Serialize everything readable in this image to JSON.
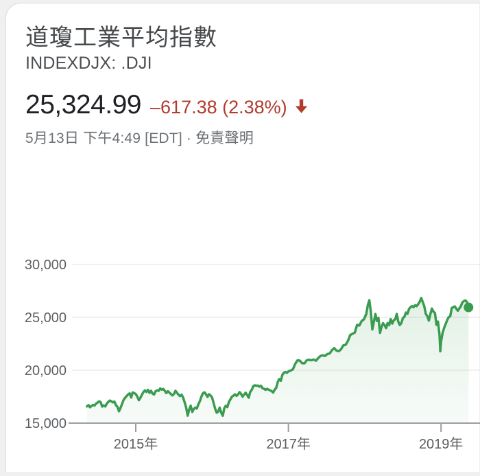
{
  "card": {
    "title": "道瓊工業平均指數",
    "ticker": "INDEXDJX: .DJI",
    "quote": {
      "price": "25,324.99",
      "change": "–617.38 (2.38%)",
      "direction": "down",
      "change_color": "#b23b2e"
    },
    "timestamp": "5月13日 下午4:49 [EDT] · ",
    "disclaimer": "免責聲明"
  },
  "chart_data": {
    "type": "area",
    "title": "Dow Jones Industrial Average 5-year price chart",
    "grid": true,
    "line_color": "#3a9c50",
    "dot_color": "#3a9c50",
    "axis_color": "#9b9da0",
    "grid_color": "#ececec",
    "label_color": "#5b5e61",
    "ylim": [
      15000,
      30000
    ],
    "xlim_years": [
      2014.3,
      2019.45
    ],
    "y_ticks": [
      {
        "label": "30,000",
        "value": 30000
      },
      {
        "label": "25,000",
        "value": 25000
      },
      {
        "label": "20,000",
        "value": 20000
      },
      {
        "label": "15,000",
        "value": 15000
      }
    ],
    "x_ticks": [
      {
        "label": "2015年",
        "year": 2015
      },
      {
        "label": "2017年",
        "year": 2017
      },
      {
        "label": "2019年",
        "year": 2019
      }
    ],
    "series": [
      {
        "name": "INDEXDJX: .DJI",
        "points": [
          [
            2014.36,
            16580
          ],
          [
            2014.38,
            16700
          ],
          [
            2014.4,
            16500
          ],
          [
            2014.42,
            16620
          ],
          [
            2014.44,
            16720
          ],
          [
            2014.46,
            16660
          ],
          [
            2014.48,
            16850
          ],
          [
            2014.5,
            16940
          ],
          [
            2014.52,
            17060
          ],
          [
            2014.54,
            16980
          ],
          [
            2014.56,
            16560
          ],
          [
            2014.58,
            16680
          ],
          [
            2014.6,
            16570
          ],
          [
            2014.62,
            16840
          ],
          [
            2014.64,
            17010
          ],
          [
            2014.66,
            17130
          ],
          [
            2014.68,
            17060
          ],
          [
            2014.7,
            16960
          ],
          [
            2014.72,
            17040
          ],
          [
            2014.74,
            16700
          ],
          [
            2014.76,
            16540
          ],
          [
            2014.78,
            16120
          ],
          [
            2014.8,
            16420
          ],
          [
            2014.82,
            16810
          ],
          [
            2014.84,
            17190
          ],
          [
            2014.86,
            17390
          ],
          [
            2014.88,
            17550
          ],
          [
            2014.9,
            17720
          ],
          [
            2014.92,
            17810
          ],
          [
            2014.94,
            17420
          ],
          [
            2014.96,
            17900
          ],
          [
            2014.98,
            17830
          ],
          [
            2015.0,
            17750
          ],
          [
            2015.02,
            17510
          ],
          [
            2015.04,
            17160
          ],
          [
            2015.06,
            17390
          ],
          [
            2015.08,
            17670
          ],
          [
            2015.1,
            17930
          ],
          [
            2015.12,
            18100
          ],
          [
            2015.14,
            17950
          ],
          [
            2015.16,
            18140
          ],
          [
            2015.18,
            17860
          ],
          [
            2015.2,
            18050
          ],
          [
            2015.22,
            17780
          ],
          [
            2015.24,
            17710
          ],
          [
            2015.26,
            18010
          ],
          [
            2015.28,
            18100
          ],
          [
            2015.3,
            18050
          ],
          [
            2015.32,
            18270
          ],
          [
            2015.34,
            18170
          ],
          [
            2015.36,
            18230
          ],
          [
            2015.38,
            18060
          ],
          [
            2015.4,
            17840
          ],
          [
            2015.42,
            18010
          ],
          [
            2015.44,
            17890
          ],
          [
            2015.46,
            17750
          ],
          [
            2015.48,
            17620
          ],
          [
            2015.5,
            17760
          ],
          [
            2015.52,
            18050
          ],
          [
            2015.54,
            17870
          ],
          [
            2015.56,
            17680
          ],
          [
            2015.58,
            17550
          ],
          [
            2015.6,
            17690
          ],
          [
            2015.62,
            17420
          ],
          [
            2015.64,
            16990
          ],
          [
            2015.66,
            16460
          ],
          [
            2015.68,
            15710
          ],
          [
            2015.7,
            16280
          ],
          [
            2015.72,
            16650
          ],
          [
            2015.74,
            16060
          ],
          [
            2015.76,
            16330
          ],
          [
            2015.78,
            16470
          ],
          [
            2015.8,
            16380
          ],
          [
            2015.82,
            16780
          ],
          [
            2015.84,
            17080
          ],
          [
            2015.86,
            17500
          ],
          [
            2015.88,
            17820
          ],
          [
            2015.9,
            17910
          ],
          [
            2015.92,
            17730
          ],
          [
            2015.94,
            17480
          ],
          [
            2015.96,
            17730
          ],
          [
            2015.98,
            17600
          ],
          [
            2016.0,
            17420
          ],
          [
            2016.02,
            16900
          ],
          [
            2016.04,
            16350
          ],
          [
            2016.06,
            15990
          ],
          [
            2016.08,
            16090
          ],
          [
            2016.1,
            16470
          ],
          [
            2016.12,
            15970
          ],
          [
            2016.14,
            15700
          ],
          [
            2016.16,
            16400
          ],
          [
            2016.18,
            16640
          ],
          [
            2016.2,
            16520
          ],
          [
            2016.22,
            17000
          ],
          [
            2016.24,
            17250
          ],
          [
            2016.26,
            17500
          ],
          [
            2016.28,
            17600
          ],
          [
            2016.3,
            17720
          ],
          [
            2016.32,
            17580
          ],
          [
            2016.34,
            17700
          ],
          [
            2016.36,
            17930
          ],
          [
            2016.38,
            17750
          ],
          [
            2016.4,
            17500
          ],
          [
            2016.42,
            17700
          ],
          [
            2016.44,
            17870
          ],
          [
            2016.46,
            17640
          ],
          [
            2016.48,
            17400
          ],
          [
            2016.5,
            17950
          ],
          [
            2016.52,
            18150
          ],
          [
            2016.54,
            18500
          ],
          [
            2016.56,
            18570
          ],
          [
            2016.58,
            18530
          ],
          [
            2016.6,
            18550
          ],
          [
            2016.62,
            18450
          ],
          [
            2016.64,
            18530
          ],
          [
            2016.66,
            18300
          ],
          [
            2016.68,
            18250
          ],
          [
            2016.7,
            18150
          ],
          [
            2016.72,
            18240
          ],
          [
            2016.74,
            18160
          ],
          [
            2016.76,
            18100
          ],
          [
            2016.78,
            18020
          ],
          [
            2016.8,
            17890
          ],
          [
            2016.82,
            18170
          ],
          [
            2016.84,
            18330
          ],
          [
            2016.86,
            18870
          ],
          [
            2016.88,
            19170
          ],
          [
            2016.9,
            19000
          ],
          [
            2016.92,
            19550
          ],
          [
            2016.94,
            19760
          ],
          [
            2016.96,
            19830
          ],
          [
            2016.98,
            19760
          ],
          [
            2017.0,
            19880
          ],
          [
            2017.03,
            19970
          ],
          [
            2017.06,
            20100
          ],
          [
            2017.09,
            20620
          ],
          [
            2017.12,
            20940
          ],
          [
            2017.15,
            20900
          ],
          [
            2017.18,
            20660
          ],
          [
            2017.21,
            20650
          ],
          [
            2017.24,
            20940
          ],
          [
            2017.27,
            20980
          ],
          [
            2017.3,
            20940
          ],
          [
            2017.33,
            21010
          ],
          [
            2017.36,
            20900
          ],
          [
            2017.39,
            21140
          ],
          [
            2017.42,
            21350
          ],
          [
            2017.45,
            21410
          ],
          [
            2017.48,
            21350
          ],
          [
            2017.51,
            21530
          ],
          [
            2017.54,
            21580
          ],
          [
            2017.57,
            21890
          ],
          [
            2017.6,
            22090
          ],
          [
            2017.63,
            21860
          ],
          [
            2017.66,
            21800
          ],
          [
            2017.69,
            21990
          ],
          [
            2017.72,
            22350
          ],
          [
            2017.75,
            22400
          ],
          [
            2017.78,
            22770
          ],
          [
            2017.81,
            23330
          ],
          [
            2017.84,
            23440
          ],
          [
            2017.87,
            23560
          ],
          [
            2017.9,
            24290
          ],
          [
            2017.93,
            24230
          ],
          [
            2017.96,
            24650
          ],
          [
            2017.99,
            24820
          ],
          [
            2018.02,
            25300
          ],
          [
            2018.04,
            26150
          ],
          [
            2018.06,
            26620
          ],
          [
            2018.08,
            25520
          ],
          [
            2018.1,
            23860
          ],
          [
            2018.12,
            24600
          ],
          [
            2018.14,
            25310
          ],
          [
            2018.16,
            24660
          ],
          [
            2018.18,
            24950
          ],
          [
            2018.2,
            23530
          ],
          [
            2018.22,
            24100
          ],
          [
            2018.24,
            24450
          ],
          [
            2018.26,
            24260
          ],
          [
            2018.28,
            23980
          ],
          [
            2018.3,
            24460
          ],
          [
            2018.32,
            24260
          ],
          [
            2018.34,
            24830
          ],
          [
            2018.36,
            24410
          ],
          [
            2018.38,
            24720
          ],
          [
            2018.4,
            24820
          ],
          [
            2018.42,
            25320
          ],
          [
            2018.44,
            24580
          ],
          [
            2018.46,
            24270
          ],
          [
            2018.48,
            24460
          ],
          [
            2018.5,
            24920
          ],
          [
            2018.52,
            25060
          ],
          [
            2018.54,
            25450
          ],
          [
            2018.56,
            25330
          ],
          [
            2018.58,
            25790
          ],
          [
            2018.6,
            25960
          ],
          [
            2018.62,
            26060
          ],
          [
            2018.64,
            25970
          ],
          [
            2018.66,
            26150
          ],
          [
            2018.68,
            26060
          ],
          [
            2018.7,
            26250
          ],
          [
            2018.72,
            26460
          ],
          [
            2018.74,
            26830
          ],
          [
            2018.76,
            26450
          ],
          [
            2018.78,
            26060
          ],
          [
            2018.8,
            25340
          ],
          [
            2018.82,
            25110
          ],
          [
            2018.84,
            24690
          ],
          [
            2018.86,
            25290
          ],
          [
            2018.88,
            25830
          ],
          [
            2018.9,
            25540
          ],
          [
            2018.92,
            25410
          ],
          [
            2018.94,
            24290
          ],
          [
            2018.96,
            24600
          ],
          [
            2018.98,
            23330
          ],
          [
            2018.99,
            21790
          ],
          [
            2019.0,
            22690
          ],
          [
            2019.02,
            23530
          ],
          [
            2019.04,
            24000
          ],
          [
            2019.06,
            24370
          ],
          [
            2019.08,
            24740
          ],
          [
            2019.1,
            25010
          ],
          [
            2019.12,
            25110
          ],
          [
            2019.14,
            25880
          ],
          [
            2019.16,
            25950
          ],
          [
            2019.18,
            26030
          ],
          [
            2019.2,
            25820
          ],
          [
            2019.22,
            25630
          ],
          [
            2019.24,
            25850
          ],
          [
            2019.26,
            26060
          ],
          [
            2019.28,
            26420
          ],
          [
            2019.3,
            26540
          ],
          [
            2019.32,
            26600
          ],
          [
            2019.34,
            26440
          ],
          [
            2019.36,
            25940
          ]
        ]
      }
    ],
    "end_dot": true,
    "legend": "none"
  }
}
